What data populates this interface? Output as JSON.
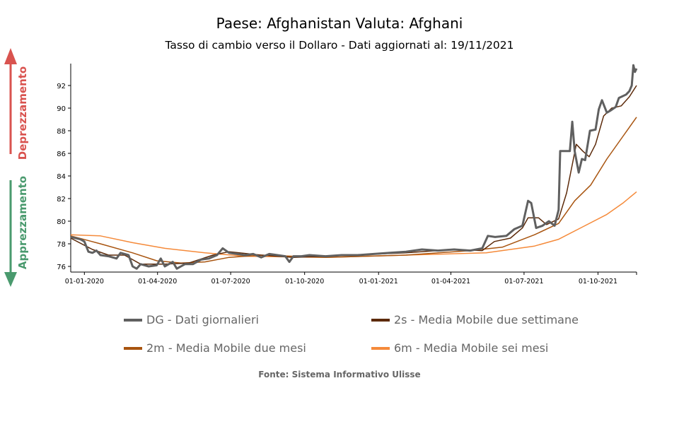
{
  "chart_data": {
    "type": "line",
    "title": "Paese: Afghanistan Valuta: Afghani",
    "subtitle": "Tasso di cambio verso il Dollaro - Dati aggiornati al: 19/11/2021",
    "x_unit": "days since 01-01-2020",
    "xlim": [
      -17,
      687
    ],
    "ylim": [
      75.5,
      94
    ],
    "yticks": [
      76,
      78,
      80,
      82,
      84,
      86,
      88,
      90,
      92
    ],
    "xticks": [
      {
        "day": 0,
        "label": "01-01-2020"
      },
      {
        "day": 91,
        "label": "01-04-2020"
      },
      {
        "day": 182,
        "label": "01-07-2020"
      },
      {
        "day": 274,
        "label": "01-10-2020"
      },
      {
        "day": 366,
        "label": "01-01-2021"
      },
      {
        "day": 456,
        "label": "01-04-2021"
      },
      {
        "day": 547,
        "label": "01-07-2021"
      },
      {
        "day": 639,
        "label": "01-10-2021"
      }
    ],
    "side_labels": {
      "up": "Deprezzamento",
      "down": "Apprezzamento",
      "up_color": "#d9534f",
      "down_color": "#4a9a6e"
    },
    "series": [
      {
        "name": "DG - Dati giornalieri",
        "color": "#606060",
        "width": 3,
        "points": [
          [
            -17,
            78.6
          ],
          [
            -5,
            78.4
          ],
          [
            0,
            78.2
          ],
          [
            5,
            77.3
          ],
          [
            10,
            77.2
          ],
          [
            15,
            77.4
          ],
          [
            20,
            77.0
          ],
          [
            30,
            76.9
          ],
          [
            40,
            76.7
          ],
          [
            45,
            77.2
          ],
          [
            55,
            77.0
          ],
          [
            60,
            76.0
          ],
          [
            65,
            75.8
          ],
          [
            70,
            76.2
          ],
          [
            80,
            76.0
          ],
          [
            90,
            76.1
          ],
          [
            95,
            76.7
          ],
          [
            100,
            76.0
          ],
          [
            110,
            76.4
          ],
          [
            115,
            75.8
          ],
          [
            125,
            76.2
          ],
          [
            135,
            76.2
          ],
          [
            145,
            76.6
          ],
          [
            155,
            76.7
          ],
          [
            165,
            77.0
          ],
          [
            172,
            77.6
          ],
          [
            180,
            77.2
          ],
          [
            190,
            77.1
          ],
          [
            200,
            77.0
          ],
          [
            210,
            77.1
          ],
          [
            220,
            76.8
          ],
          [
            230,
            77.1
          ],
          [
            240,
            77.0
          ],
          [
            250,
            76.9
          ],
          [
            255,
            76.4
          ],
          [
            260,
            76.9
          ],
          [
            270,
            76.9
          ],
          [
            280,
            77.0
          ],
          [
            300,
            76.9
          ],
          [
            320,
            77.0
          ],
          [
            340,
            77.0
          ],
          [
            360,
            77.1
          ],
          [
            380,
            77.2
          ],
          [
            400,
            77.3
          ],
          [
            420,
            77.5
          ],
          [
            440,
            77.4
          ],
          [
            460,
            77.5
          ],
          [
            480,
            77.4
          ],
          [
            495,
            77.6
          ],
          [
            502,
            78.7
          ],
          [
            511,
            78.6
          ],
          [
            525,
            78.7
          ],
          [
            535,
            79.3
          ],
          [
            545,
            79.6
          ],
          [
            552,
            81.8
          ],
          [
            556,
            81.6
          ],
          [
            562,
            79.4
          ],
          [
            570,
            79.6
          ],
          [
            578,
            80.0
          ],
          [
            585,
            79.6
          ],
          [
            590,
            81.0
          ],
          [
            592,
            86.2
          ],
          [
            604,
            86.2
          ],
          [
            607,
            88.8
          ],
          [
            610,
            86.2
          ],
          [
            615,
            84.3
          ],
          [
            619,
            85.5
          ],
          [
            623,
            85.4
          ],
          [
            629,
            88.0
          ],
          [
            636,
            88.1
          ],
          [
            640,
            89.9
          ],
          [
            644,
            90.7
          ],
          [
            650,
            89.6
          ],
          [
            655,
            89.8
          ],
          [
            661,
            90.1
          ],
          [
            665,
            90.9
          ],
          [
            674,
            91.2
          ],
          [
            678,
            91.5
          ],
          [
            681,
            92.0
          ],
          [
            683,
            93.8
          ],
          [
            685,
            93.2
          ],
          [
            687,
            93.5
          ]
        ]
      },
      {
        "name": "2s - Media Mobile due settimane",
        "color": "#5c2a0a",
        "width": 1.5,
        "points": [
          [
            -17,
            78.5
          ],
          [
            10,
            77.5
          ],
          [
            30,
            77.0
          ],
          [
            50,
            77.0
          ],
          [
            70,
            76.2
          ],
          [
            100,
            76.2
          ],
          [
            130,
            76.3
          ],
          [
            160,
            77.0
          ],
          [
            180,
            77.3
          ],
          [
            220,
            77.0
          ],
          [
            260,
            76.8
          ],
          [
            300,
            76.9
          ],
          [
            400,
            77.2
          ],
          [
            460,
            77.5
          ],
          [
            495,
            77.4
          ],
          [
            510,
            78.2
          ],
          [
            530,
            78.5
          ],
          [
            545,
            79.4
          ],
          [
            552,
            80.3
          ],
          [
            565,
            80.3
          ],
          [
            575,
            79.7
          ],
          [
            590,
            80.2
          ],
          [
            600,
            82.5
          ],
          [
            607,
            85.0
          ],
          [
            612,
            86.8
          ],
          [
            620,
            86.2
          ],
          [
            628,
            85.7
          ],
          [
            636,
            86.8
          ],
          [
            646,
            89.3
          ],
          [
            656,
            90.0
          ],
          [
            668,
            90.2
          ],
          [
            678,
            91.0
          ],
          [
            687,
            92.0
          ]
        ]
      },
      {
        "name": "2m - Media Mobile due mesi",
        "color": "#a8540f",
        "width": 1.5,
        "points": [
          [
            -17,
            78.7
          ],
          [
            20,
            78.0
          ],
          [
            60,
            77.2
          ],
          [
            90,
            76.5
          ],
          [
            120,
            76.3
          ],
          [
            150,
            76.4
          ],
          [
            180,
            76.8
          ],
          [
            220,
            77.0
          ],
          [
            300,
            76.8
          ],
          [
            400,
            77.0
          ],
          [
            480,
            77.4
          ],
          [
            520,
            77.7
          ],
          [
            560,
            78.8
          ],
          [
            590,
            79.8
          ],
          [
            610,
            81.8
          ],
          [
            630,
            83.2
          ],
          [
            650,
            85.5
          ],
          [
            670,
            87.5
          ],
          [
            687,
            89.2
          ]
        ]
      },
      {
        "name": "6m - Media Mobile sei mesi",
        "color": "#f58a3a",
        "width": 1.5,
        "points": [
          [
            -17,
            78.8
          ],
          [
            20,
            78.7
          ],
          [
            60,
            78.1
          ],
          [
            100,
            77.6
          ],
          [
            150,
            77.2
          ],
          [
            200,
            76.9
          ],
          [
            300,
            76.8
          ],
          [
            400,
            77.0
          ],
          [
            500,
            77.2
          ],
          [
            560,
            77.8
          ],
          [
            590,
            78.4
          ],
          [
            620,
            79.5
          ],
          [
            650,
            80.6
          ],
          [
            670,
            81.6
          ],
          [
            687,
            82.6
          ]
        ]
      }
    ],
    "legend_placement": "bottom",
    "source": "Fonte: Sistema Informativo Ulisse"
  }
}
